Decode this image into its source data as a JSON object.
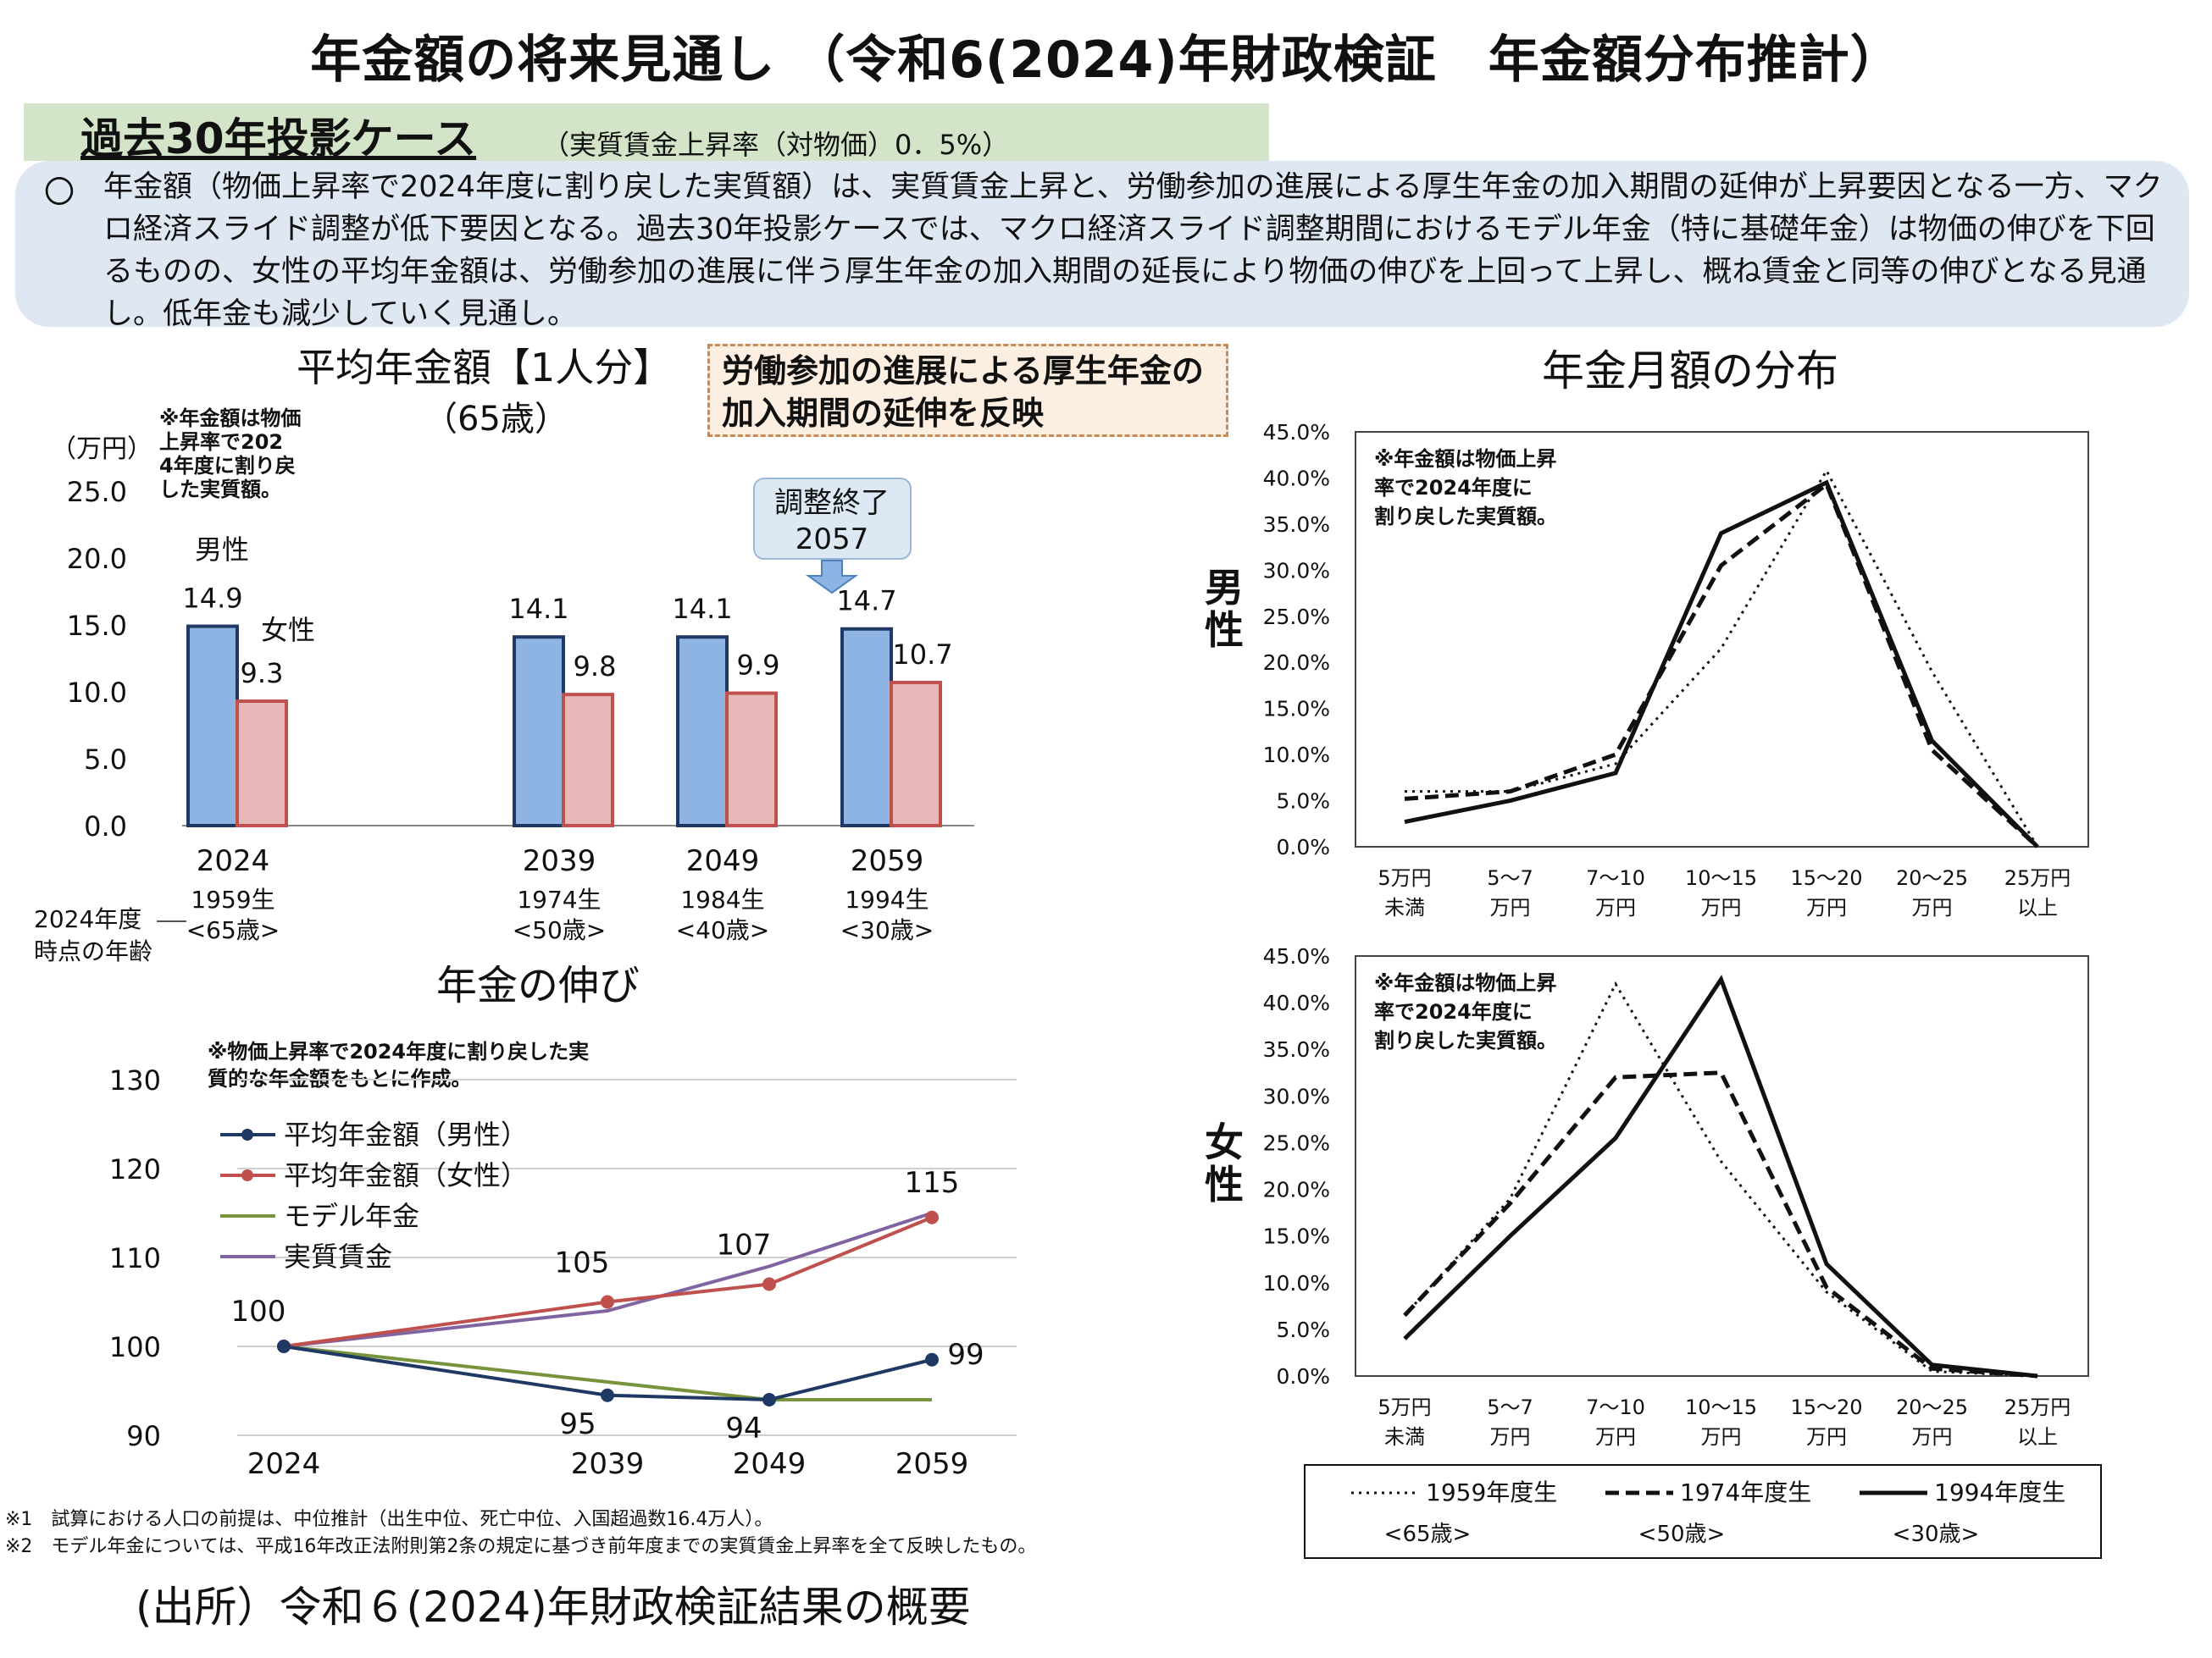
{
  "title": "年金額の将来見通し （令和6(2024)年財政検証　年金額分布推計）",
  "case": {
    "title": "過去30年投影ケース",
    "subtitle": "（実質賃金上昇率（対物価）0．5%）"
  },
  "summary": {
    "bullet": "〇",
    "text": "年金額（物価上昇率で2024年度に割り戻した実質額）は、実質賃金上昇と、労働参加の進展による厚生年金の加入期間の延伸が上昇要因となる一方、マクロ経済スライド調整が低下要因となる。過去30年投影ケースでは、マクロ経済スライド調整期間におけるモデル年金（特に基礎年金）は物価の伸びを下回るものの、女性の平均年金額は、労働参加の進展に伴う厚生年金の加入期間の延長により物価の伸びを上回って上昇し、概ね賃金と同等の伸びとなる見通し。低年金も減少していく見通し。"
  },
  "note_box": "労働参加の進展による厚生年金の加入期間の延伸を反映",
  "colors": {
    "male_bar": "#8eb4e3",
    "female_bar": "#e6b9b8",
    "bar_border": "#1f3864",
    "line_male": "#1f3864",
    "line_female": "#c0504d",
    "line_model": "#77933c",
    "line_wage": "#8064a2"
  },
  "source": "(出所）令和６(2024)年財政検証結果の概要",
  "footnotes": [
    "※1　試算における人口の前提は、中位推計（出生中位、死亡中位、入国超過数16.4万人）。",
    "※2　モデル年金については、平成16年改正法附則第2条の規定に基づき前年度までの実質賃金上昇率を全て反映したもの。"
  ],
  "chart_data": [
    {
      "type": "bar",
      "title": "平均年金額【1人分】",
      "subtitle": "（65歳）",
      "note": "※年金額は物価上昇率で2024年度に割り戻した実質額。",
      "ylabel": "（万円）",
      "ylim": [
        0,
        25
      ],
      "yticks": [
        "25.0",
        "20.0",
        "15.0",
        "10.0",
        "5.0",
        "0.0"
      ],
      "categories": [
        "2024",
        "2039",
        "2049",
        "2059"
      ],
      "birth_labels": [
        "1959生",
        "1974生",
        "1984生",
        "1994生"
      ],
      "age_labels": [
        "<65歳>",
        "<50歳>",
        "<40歳>",
        "<30歳>"
      ],
      "age_axis_label": "2024年度時点の年齢",
      "series": [
        {
          "name": "男性",
          "values": [
            14.9,
            14.1,
            14.1,
            14.7
          ],
          "labels": [
            "14.9",
            "14.1",
            "14.1",
            "14.7"
          ]
        },
        {
          "name": "女性",
          "values": [
            9.3,
            9.8,
            9.9,
            10.7
          ],
          "labels": [
            "9.3",
            "9.8",
            "9.9",
            "10.7"
          ]
        }
      ],
      "annotation": {
        "text1": "調整終了",
        "text2": "2057"
      }
    },
    {
      "type": "line",
      "title": "年金の伸び",
      "note": "※物価上昇率で2024年度に割り戻した実質的な年金額をもとに作成。",
      "ylim": [
        90,
        130
      ],
      "yticks": [
        "130",
        "120",
        "110",
        "100",
        "90"
      ],
      "x": [
        "2024",
        "2039",
        "2049",
        "2059"
      ],
      "series": [
        {
          "name": "平均年金額（男性）",
          "values": [
            100,
            94.5,
            94,
            98.5
          ]
        },
        {
          "name": "平均年金額（女性）",
          "values": [
            100,
            105,
            107,
            114.5
          ]
        },
        {
          "name": "モデル年金",
          "values": [
            100,
            96,
            94,
            94
          ]
        },
        {
          "name": "実質賃金",
          "values": [
            100,
            104,
            109,
            115
          ]
        }
      ],
      "data_labels": [
        {
          "text": "100",
          "x": 0,
          "y": 100
        },
        {
          "text": "105",
          "x": 1,
          "y": 105
        },
        {
          "text": "107",
          "x": 2,
          "y": 107
        },
        {
          "text": "115",
          "x": 3,
          "y": 114.5
        },
        {
          "text": "95",
          "x": 1,
          "y": 94.5
        },
        {
          "text": "94",
          "x": 2,
          "y": 94
        },
        {
          "text": "99",
          "x": 3,
          "y": 98.5
        }
      ]
    },
    {
      "type": "line",
      "title": "年金月額の分布",
      "panel_label": "男性",
      "note": "※年金額は物価上昇率で2024年度に割り戻した実質額。",
      "ylim": [
        0,
        45
      ],
      "yticks": [
        "45.0%",
        "40.0%",
        "35.0%",
        "30.0%",
        "25.0%",
        "20.0%",
        "15.0%",
        "10.0%",
        "5.0%",
        "0.0%"
      ],
      "categories": [
        [
          "5万円",
          "未満"
        ],
        [
          "5～7",
          "万円"
        ],
        [
          "7～10",
          "万円"
        ],
        [
          "10～15",
          "万円"
        ],
        [
          "15～20",
          "万円"
        ],
        [
          "20～25",
          "万円"
        ],
        [
          "25万円",
          "以上"
        ]
      ],
      "series": [
        {
          "name": "1959年度生",
          "values": [
            6,
            6,
            9,
            21.5,
            40.8,
            19,
            0
          ]
        },
        {
          "name": "1974年度生",
          "values": [
            5.2,
            6,
            10,
            30.5,
            39.3,
            10.5,
            0
          ]
        },
        {
          "name": "1994年度生",
          "values": [
            2.7,
            5,
            8,
            34,
            39.5,
            11.5,
            0
          ]
        }
      ]
    },
    {
      "type": "line",
      "panel_label": "女性",
      "note": "※年金額は物価上昇率で2024年度に割り戻した実質額。",
      "ylim": [
        0,
        45
      ],
      "yticks": [
        "45.0%",
        "40.0%",
        "35.0%",
        "30.0%",
        "25.0%",
        "20.0%",
        "15.0%",
        "10.0%",
        "5.0%",
        "0.0%"
      ],
      "categories": [
        [
          "5万円",
          "未満"
        ],
        [
          "5～7",
          "万円"
        ],
        [
          "7～10",
          "万円"
        ],
        [
          "10～15",
          "万円"
        ],
        [
          "15～20",
          "万円"
        ],
        [
          "20～25",
          "万円"
        ],
        [
          "25万円",
          "以上"
        ]
      ],
      "series": [
        {
          "name": "1959年度生",
          "values": [
            6.5,
            19,
            42,
            23,
            9,
            0.5,
            0
          ]
        },
        {
          "name": "1974年度生",
          "values": [
            6.5,
            18.5,
            32,
            32.5,
            9.5,
            0.8,
            0
          ]
        },
        {
          "name": "1994年度生",
          "values": [
            4,
            15,
            25.5,
            42.5,
            12,
            1.2,
            0
          ]
        }
      ],
      "legend": [
        {
          "name": "1959年度生",
          "age": "<65歳>"
        },
        {
          "name": "1974年度生",
          "age": "<50歳>"
        },
        {
          "name": "1994年度生",
          "age": "<30歳>"
        }
      ]
    }
  ]
}
